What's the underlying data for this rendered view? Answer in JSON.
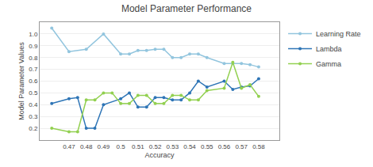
{
  "chart_data": {
    "type": "line",
    "title": "Model Parameter Performance",
    "xlabel": "Accuracy",
    "ylabel": "Model Parameter Values",
    "series": [
      {
        "name": "Learning Rate",
        "color": "#92C5DE",
        "marker": "circle",
        "x": [
          0.46,
          0.47,
          0.48,
          0.49,
          0.5,
          0.505,
          0.51,
          0.515,
          0.52,
          0.525,
          0.53,
          0.535,
          0.54,
          0.545,
          0.55,
          0.56,
          0.565,
          0.57,
          0.575,
          0.58
        ],
        "values": [
          1.05,
          0.85,
          0.87,
          1.0,
          0.83,
          0.83,
          0.86,
          0.86,
          0.87,
          0.87,
          0.8,
          0.8,
          0.83,
          0.83,
          0.8,
          0.75,
          0.75,
          0.75,
          0.74,
          0.72
        ]
      },
      {
        "name": "Lambda",
        "color": "#2E75B6",
        "marker": "circle",
        "x": [
          0.46,
          0.47,
          0.475,
          0.48,
          0.485,
          0.49,
          0.5,
          0.505,
          0.51,
          0.515,
          0.52,
          0.525,
          0.53,
          0.535,
          0.54,
          0.545,
          0.55,
          0.56,
          0.565,
          0.57,
          0.575,
          0.58
        ],
        "values": [
          0.41,
          0.45,
          0.46,
          0.2,
          0.2,
          0.4,
          0.45,
          0.5,
          0.38,
          0.38,
          0.46,
          0.46,
          0.44,
          0.44,
          0.5,
          0.6,
          0.55,
          0.6,
          0.53,
          0.55,
          0.56,
          0.62
        ]
      },
      {
        "name": "Gamma",
        "color": "#92D050",
        "marker": "circle",
        "x": [
          0.46,
          0.47,
          0.475,
          0.48,
          0.485,
          0.49,
          0.495,
          0.5,
          0.505,
          0.51,
          0.515,
          0.52,
          0.525,
          0.53,
          0.535,
          0.54,
          0.545,
          0.55,
          0.56,
          0.565,
          0.57,
          0.575,
          0.58
        ],
        "values": [
          0.2,
          0.17,
          0.17,
          0.44,
          0.44,
          0.5,
          0.5,
          0.41,
          0.41,
          0.48,
          0.48,
          0.41,
          0.41,
          0.48,
          0.48,
          0.44,
          0.44,
          0.52,
          0.54,
          0.76,
          0.54,
          0.57,
          0.47
        ]
      }
    ],
    "xlim": [
      0.453,
      0.592
    ],
    "xticks": [
      0.47,
      0.48,
      0.49,
      0.5,
      0.51,
      0.52,
      0.53,
      0.54,
      0.55,
      0.56,
      0.57,
      0.58
    ],
    "ylim": [
      0.1,
      1.1
    ],
    "yticks": [
      0.2,
      0.3,
      0.4,
      0.5,
      0.6,
      0.7,
      0.8,
      0.9,
      {
        "value": 1.0,
        "label": "1.0"
      }
    ],
    "grid": "y",
    "legend": "right"
  }
}
